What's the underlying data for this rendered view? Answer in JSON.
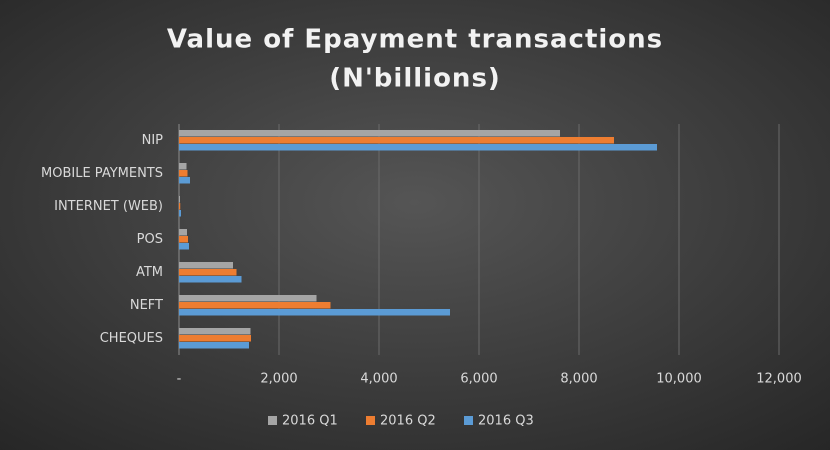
{
  "chart_data": {
    "type": "hbar",
    "title": [
      "Value of Epayment transactions",
      "(N'billions)"
    ],
    "categories": [
      "NIP",
      "MOBILE PAYMENTS",
      "INTERNET (WEB)",
      "POS",
      "ATM",
      "NEFT",
      "CHEQUES"
    ],
    "series": [
      {
        "name": "2016 Q1",
        "color": "#a5a5a5",
        "values": [
          7620,
          150,
          20,
          160,
          1080,
          2750,
          1430
        ]
      },
      {
        "name": "2016 Q2",
        "color": "#ed7d31",
        "values": [
          8700,
          170,
          25,
          180,
          1150,
          3030,
          1440
        ]
      },
      {
        "name": "2016 Q3",
        "color": "#5b9bd5",
        "values": [
          9560,
          220,
          40,
          200,
          1250,
          5420,
          1400
        ]
      }
    ],
    "xlim": [
      0,
      12000
    ],
    "xticks": [
      {
        "value": 0,
        "label": "-"
      },
      {
        "value": 2000,
        "label": "2,000"
      },
      {
        "value": 4000,
        "label": "4,000"
      },
      {
        "value": 6000,
        "label": "6,000"
      },
      {
        "value": 8000,
        "label": "8,000"
      },
      {
        "value": 10000,
        "label": "10,000"
      },
      {
        "value": 12000,
        "label": "12,000"
      }
    ],
    "grid": true,
    "legend": "bottom"
  }
}
